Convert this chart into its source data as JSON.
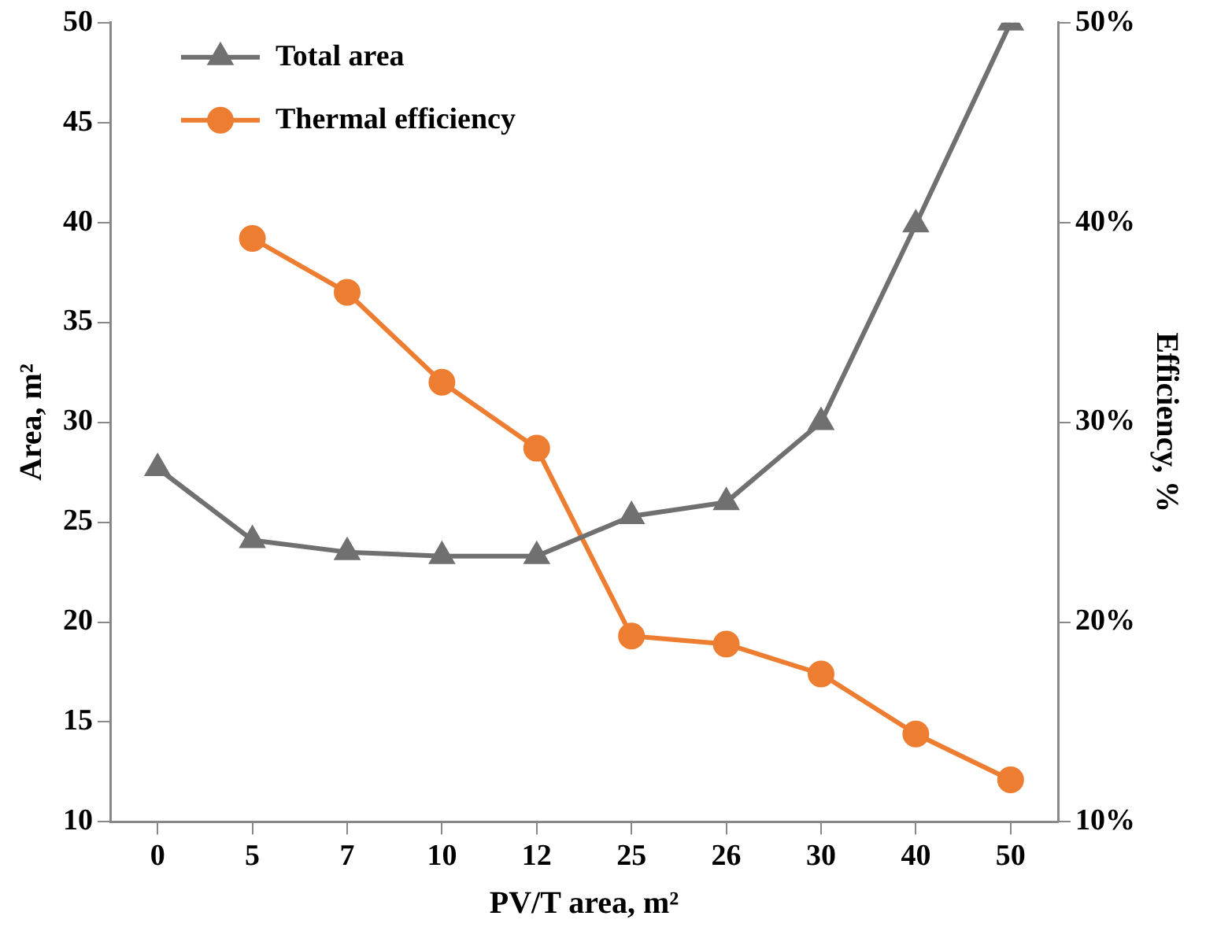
{
  "chart_data": {
    "type": "line",
    "xlabel": "PV/T area, m²",
    "ylabel": "Area, m²",
    "y2label": "Efficiency, %",
    "categories": [
      "0",
      "5",
      "7",
      "10",
      "12",
      "25",
      "26",
      "30",
      "40",
      "50"
    ],
    "series": [
      {
        "name": "Total area",
        "color": "#707070",
        "marker": "triangle",
        "values": [
          27.7,
          24.1,
          23.5,
          23.3,
          23.3,
          25.3,
          26.0,
          30.0,
          39.9,
          50.0
        ]
      },
      {
        "name": "Thermal efficiency",
        "color": "#ed7d31",
        "marker": "circle",
        "axis": "y2",
        "values": [
          null,
          39.2,
          36.5,
          32.0,
          28.7,
          19.3,
          18.9,
          17.4,
          14.4,
          12.1
        ]
      }
    ],
    "ylim": [
      10,
      50
    ],
    "yticks": [
      10,
      15,
      20,
      25,
      30,
      35,
      40,
      45,
      50
    ],
    "y2lim": [
      10,
      50
    ],
    "y2ticks": [
      {
        "value": 10,
        "label": "10%"
      },
      {
        "value": 20,
        "label": "20%"
      },
      {
        "value": 30,
        "label": "30%"
      },
      {
        "value": 40,
        "label": "40%"
      },
      {
        "value": 50,
        "label": "50%"
      }
    ],
    "grid": false,
    "legend": "top left",
    "line_style": "solid"
  }
}
